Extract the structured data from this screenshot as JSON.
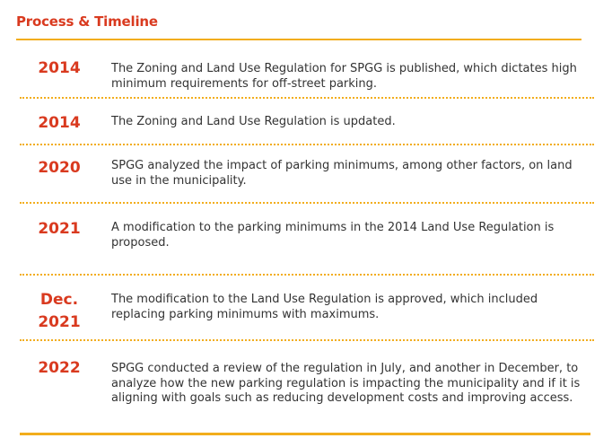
{
  "header": {
    "title": "Process & Timeline"
  },
  "timeline": [
    {
      "year": "2014",
      "text": "The Zoning and Land Use Regulation for SPGG is published, which dictates high minimum requirements for off-street parking."
    },
    {
      "year": "2014",
      "text": "The Zoning and Land Use Regulation is updated."
    },
    {
      "year": "2020",
      "text": "SPGG analyzed the impact of parking minimums, among other factors, on land use in the municipality."
    },
    {
      "year": "2021",
      "text": "A modification to the parking minimums in the 2014 Land Use Regulation is proposed."
    },
    {
      "year_line1": "Dec.",
      "year_line2": "2021",
      "text": "The modification to the Land Use Regulation is approved, which included replacing parking minimums with maximums."
    },
    {
      "year": "2022",
      "text": "SPGG conducted a review of the regulation in July, and another in December, to analyze how the new parking regulation is impacting the municipality and if it is aligning with goals such as reducing development costs and improving access."
    }
  ],
  "colors": {
    "accent_red": "#d93a1f",
    "accent_gold": "#f2ad1c",
    "text": "#333333"
  }
}
